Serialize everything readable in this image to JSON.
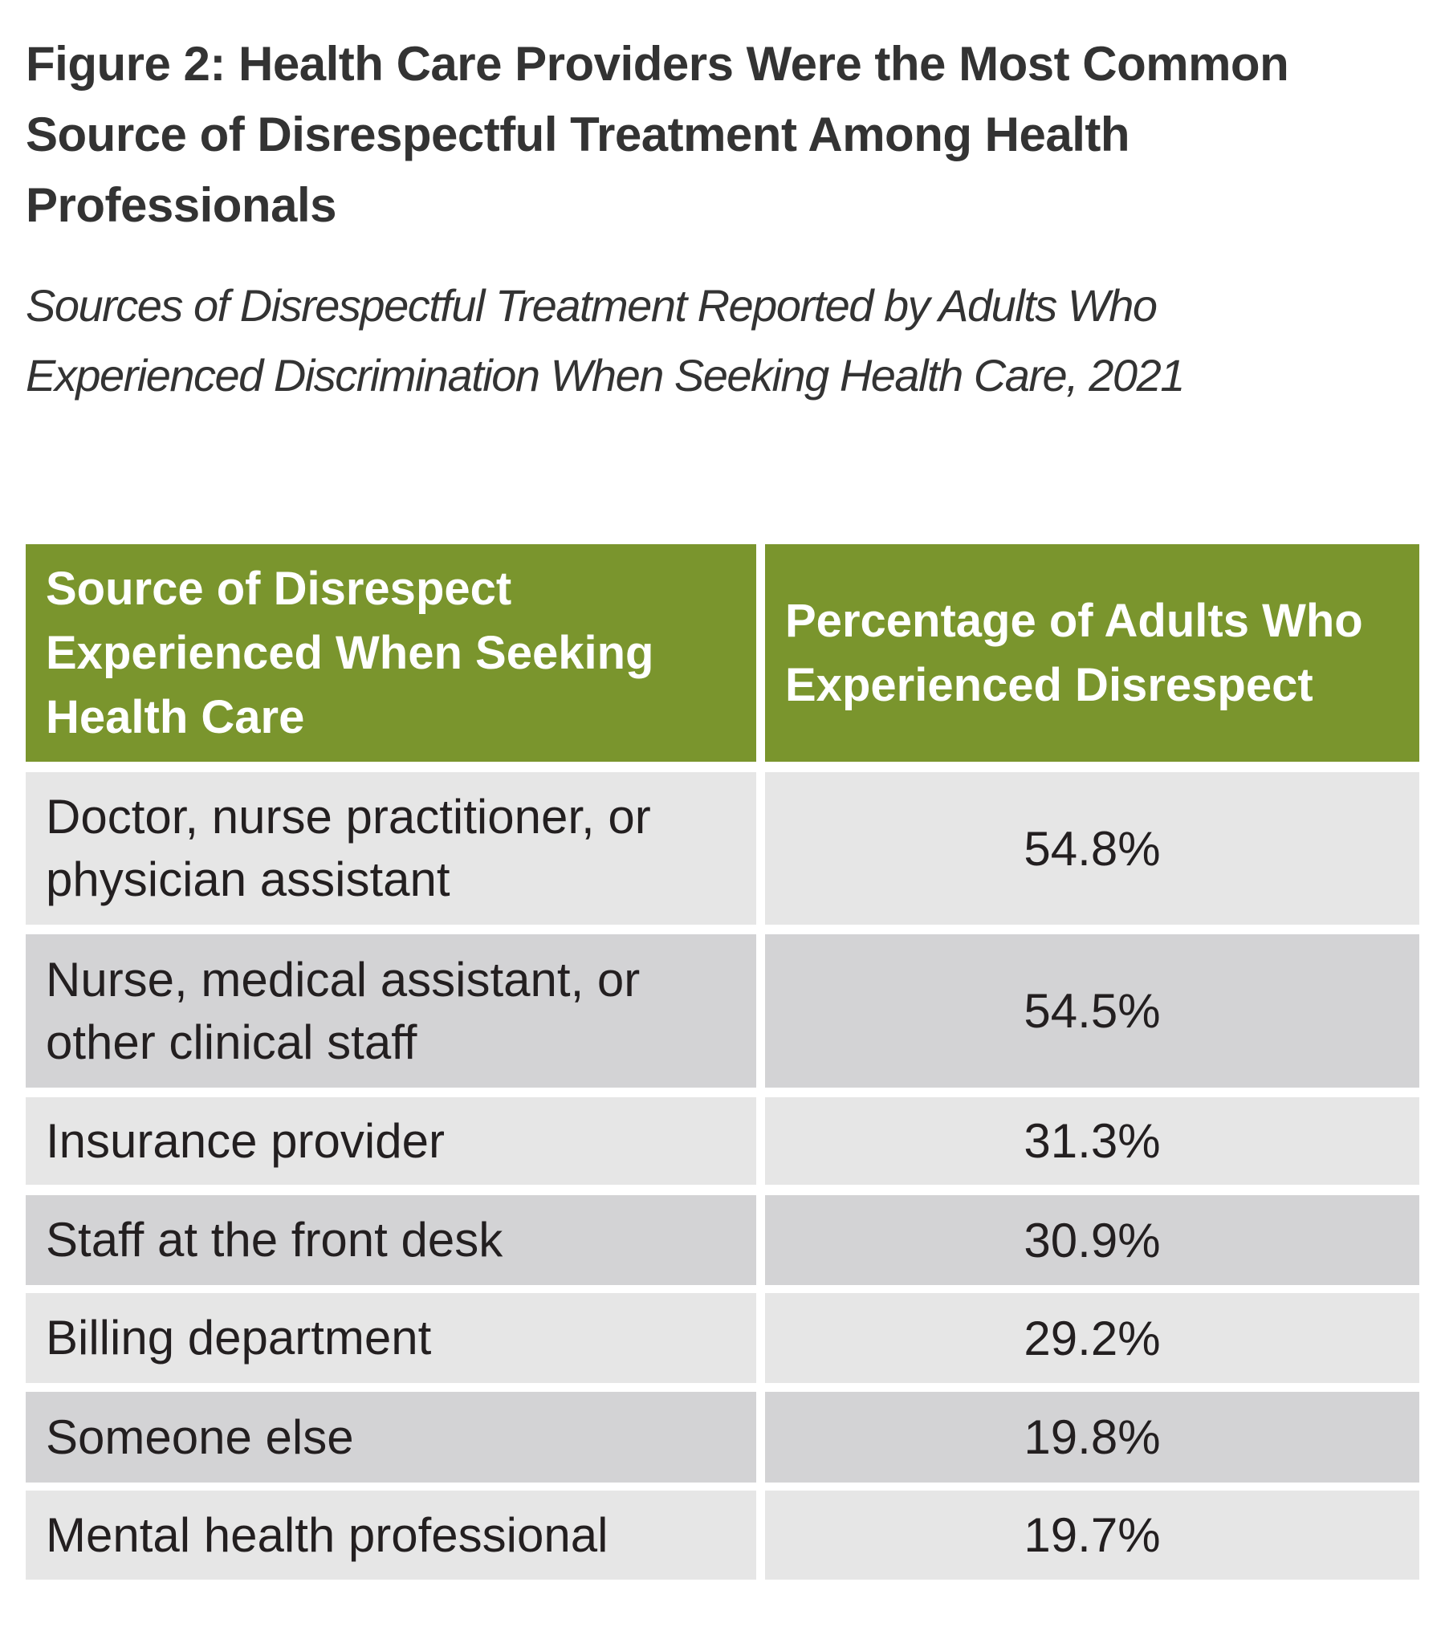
{
  "title": "Figure 2: Health Care Providers Were the Most Common Source of Disrespectful Treatment Among Health Professionals",
  "subtitle": "Sources of Disrespectful Treatment Reported by Adults Who Experienced Discrimination When Seeking Health Care, 2021",
  "colors": {
    "header": "#7a952d",
    "row_light": "#e6e6e6",
    "row_dark": "#d3d3d5"
  },
  "chart_data": {
    "type": "table",
    "columns": [
      "Source of Disrespect Experienced When Seeking Health Care",
      "Percentage of Adults Who Experienced Disrespect"
    ],
    "rows": [
      {
        "source": "Doctor, nurse practitioner, or physician assistant",
        "percent": "54.8%"
      },
      {
        "source": "Nurse, medical assistant, or other clinical staff",
        "percent": "54.5%"
      },
      {
        "source": "Insurance provider",
        "percent": "31.3%"
      },
      {
        "source": "Staff at the front desk",
        "percent": "30.9%"
      },
      {
        "source": "Billing department",
        "percent": "29.2%"
      },
      {
        "source": "Someone else",
        "percent": "19.8%"
      },
      {
        "source": "Mental health professional",
        "percent": "19.7%"
      }
    ]
  }
}
